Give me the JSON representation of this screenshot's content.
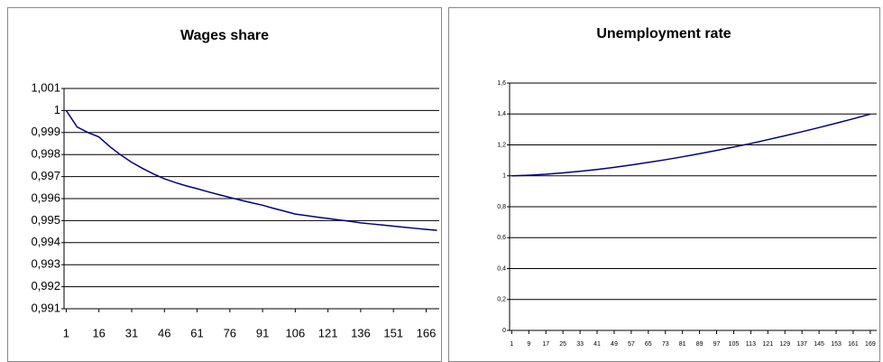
{
  "chart_data": [
    {
      "type": "line",
      "title": "Wages share",
      "x": [
        1,
        6,
        11,
        16,
        21,
        26,
        31,
        36,
        41,
        46,
        51,
        56,
        61,
        66,
        71,
        76,
        81,
        86,
        91,
        96,
        101,
        106,
        111,
        116,
        121,
        126,
        131,
        136,
        141,
        146,
        151,
        156,
        161,
        166,
        171
      ],
      "series": [
        {
          "name": "Wages share",
          "color": "#000080",
          "values": [
            1.0,
            0.99925,
            0.999,
            0.9988,
            0.99836,
            0.99798,
            0.99765,
            0.99737,
            0.99712,
            0.9969,
            0.99673,
            0.99658,
            0.99645,
            0.99631,
            0.99618,
            0.99605,
            0.99593,
            0.99581,
            0.9957,
            0.99556,
            0.99543,
            0.9953,
            0.99523,
            0.99516,
            0.9951,
            0.99503,
            0.99497,
            0.9949,
            0.99485,
            0.9948,
            0.99475,
            0.9947,
            0.99465,
            0.9946,
            0.99456
          ]
        }
      ],
      "xlim": [
        0,
        172
      ],
      "xticks": [
        1,
        16,
        31,
        46,
        61,
        76,
        91,
        106,
        121,
        136,
        151,
        166
      ],
      "ylim": [
        0.991,
        1.001
      ],
      "yticks": [
        {
          "value": 0.991,
          "label": "0,991"
        },
        {
          "value": 0.992,
          "label": "0,992"
        },
        {
          "value": 0.993,
          "label": "0,993"
        },
        {
          "value": 0.994,
          "label": "0,994"
        },
        {
          "value": 0.995,
          "label": "0,995"
        },
        {
          "value": 0.996,
          "label": "0,996"
        },
        {
          "value": 0.997,
          "label": "0,997"
        },
        {
          "value": 0.998,
          "label": "0,998"
        },
        {
          "value": 0.999,
          "label": "0,999"
        },
        1,
        {
          "value": 1.001,
          "label": "1,001"
        }
      ],
      "grid": true
    },
    {
      "type": "line",
      "title": "Unemployment rate",
      "x": [
        1,
        9,
        17,
        25,
        33,
        41,
        49,
        57,
        65,
        73,
        81,
        89,
        97,
        105,
        113,
        121,
        129,
        137,
        145,
        153,
        161,
        169
      ],
      "series": [
        {
          "name": "Unemployment rate",
          "color": "#000080",
          "values": [
            1.0,
            1.004,
            1.01,
            1.019,
            1.029,
            1.041,
            1.055,
            1.07,
            1.087,
            1.104,
            1.123,
            1.143,
            1.164,
            1.186,
            1.209,
            1.234,
            1.259,
            1.285,
            1.312,
            1.34,
            1.369,
            1.399
          ]
        }
      ],
      "xlim": [
        0,
        172
      ],
      "xticks": [
        1,
        9,
        17,
        25,
        33,
        41,
        49,
        57,
        65,
        73,
        81,
        89,
        97,
        105,
        113,
        121,
        129,
        137,
        145,
        153,
        161,
        169
      ],
      "ylim": [
        0,
        1.6
      ],
      "yticks": [
        0,
        {
          "value": 0.2,
          "label": "0,2"
        },
        {
          "value": 0.4,
          "label": "0,4"
        },
        {
          "value": 0.6,
          "label": "0,6"
        },
        {
          "value": 0.8,
          "label": "0,8"
        },
        1,
        {
          "value": 1.2,
          "label": "1,2"
        },
        {
          "value": 1.4,
          "label": "1,4"
        },
        {
          "value": 1.6,
          "label": "1,6"
        }
      ],
      "grid": true
    }
  ]
}
